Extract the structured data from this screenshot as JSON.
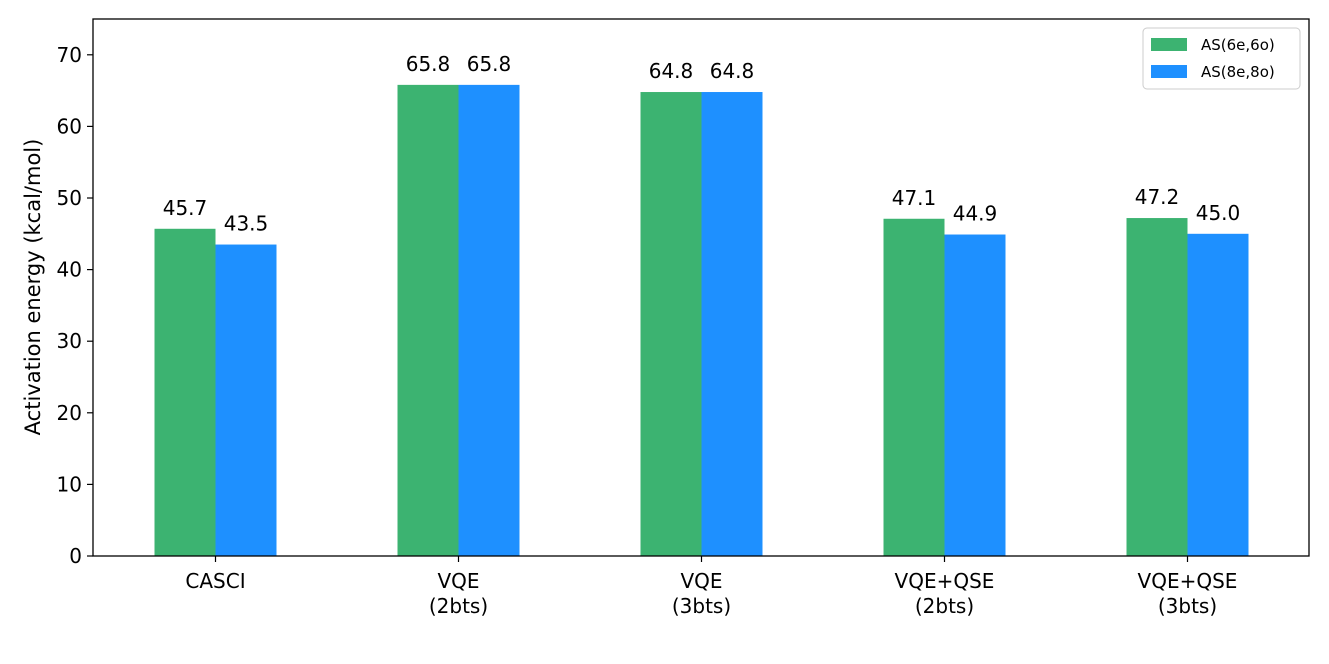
{
  "chart_data": {
    "type": "bar",
    "categories": [
      [
        "CASCI"
      ],
      [
        "VQE",
        "(2bts)"
      ],
      [
        "VQE",
        "(3bts)"
      ],
      [
        "VQE+QSE",
        "(2bts)"
      ],
      [
        "VQE+QSE",
        "(3bts)"
      ]
    ],
    "series": [
      {
        "name": "AS(6e,6o)",
        "color": "#3cb371",
        "values": [
          45.7,
          65.8,
          64.8,
          47.1,
          47.2
        ],
        "labels": [
          "45.7",
          "65.8",
          "64.8",
          "47.1",
          "47.2"
        ]
      },
      {
        "name": "AS(8e,8o)",
        "color": "#1e90ff",
        "values": [
          43.5,
          65.8,
          64.8,
          44.9,
          45.0
        ],
        "labels": [
          "43.5",
          "65.8",
          "64.8",
          "44.9",
          "45.0"
        ]
      }
    ],
    "ylabel": "Activation energy (kcal/mol)",
    "xlabel": "",
    "ylim": [
      0,
      75
    ],
    "yticks": [
      0,
      10,
      20,
      30,
      40,
      50,
      60,
      70
    ],
    "grid": false,
    "legend_position": "top-right"
  }
}
